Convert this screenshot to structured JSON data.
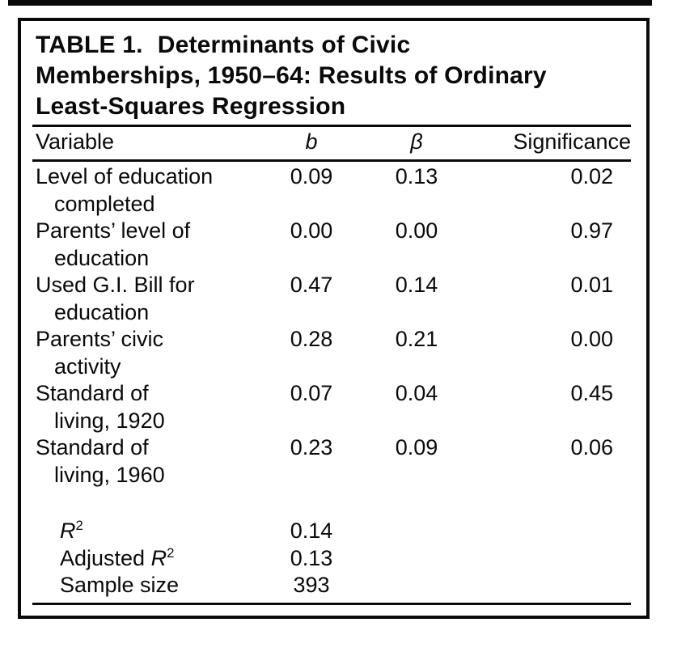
{
  "colors": {
    "ink": "#0a0a0a",
    "paper": "#ffffff"
  },
  "table": {
    "title": {
      "label": "TABLE 1.",
      "line1_rest": "Determinants of Civic",
      "line2": "Memberships, 1950–64: Results of Ordinary",
      "line3": "Least-Squares Regression"
    },
    "columns": {
      "variable": "Variable",
      "b": "b",
      "beta": "β",
      "significance": "Significance"
    },
    "rows": [
      {
        "label_line1": "Level of education",
        "label_line2": "completed",
        "b": "0.09",
        "beta": "0.13",
        "significance": "0.02"
      },
      {
        "label_line1": "Parents’ level of",
        "label_line2": "education",
        "b": "0.00",
        "beta": "0.00",
        "significance": "0.97"
      },
      {
        "label_line1": "Used G.I. Bill for",
        "label_line2": "education",
        "b": "0.47",
        "beta": "0.14",
        "significance": "0.01"
      },
      {
        "label_line1": "Parents’ civic",
        "label_line2": "activity",
        "b": "0.28",
        "beta": "0.21",
        "significance": "0.00"
      },
      {
        "label_line1": "Standard of",
        "label_line2": "living, 1920",
        "b": "0.07",
        "beta": "0.04",
        "significance": "0.45"
      },
      {
        "label_line1": "Standard of",
        "label_line2": "living, 1960",
        "b": "0.23",
        "beta": "0.09",
        "significance": "0.06"
      }
    ],
    "summary": [
      {
        "prefix": "",
        "r": "R",
        "sup": "2",
        "value": "0.14"
      },
      {
        "prefix": "Adjusted ",
        "r": "R",
        "sup": "2",
        "value": "0.13"
      },
      {
        "prefix": "Sample size",
        "r": "",
        "sup": "",
        "value": "393"
      }
    ]
  }
}
